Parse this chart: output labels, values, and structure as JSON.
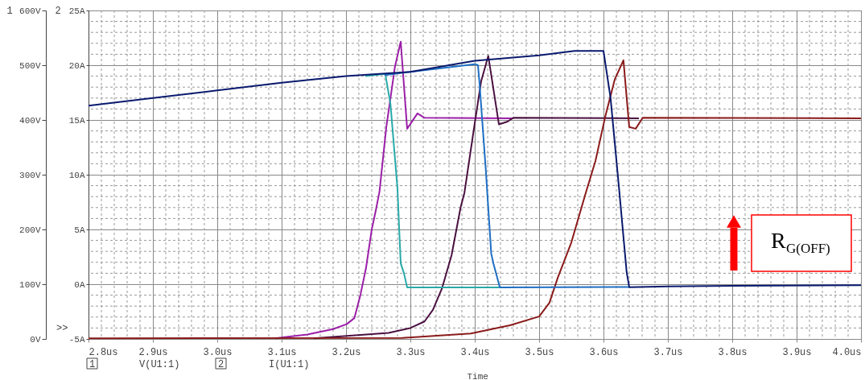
{
  "chart_data": {
    "type": "line",
    "xlabel": "Time",
    "xlim": [
      2.8,
      4.0
    ],
    "xticks": [
      {
        "value": 2.8,
        "label": "2.8us"
      },
      {
        "value": 2.9,
        "label": "2.9us"
      },
      {
        "value": 3.0,
        "label": "3.0us"
      },
      {
        "value": 3.1,
        "label": "3.1us"
      },
      {
        "value": 3.2,
        "label": "3.2us"
      },
      {
        "value": 3.3,
        "label": "3.3us"
      },
      {
        "value": 3.4,
        "label": "3.4us"
      },
      {
        "value": 3.5,
        "label": "3.5us"
      },
      {
        "value": 3.6,
        "label": "3.6us"
      },
      {
        "value": 3.7,
        "label": "3.7us"
      },
      {
        "value": 3.8,
        "label": "3.8us"
      },
      {
        "value": 3.9,
        "label": "3.9us"
      },
      {
        "value": 4.0,
        "label": "4.0us"
      }
    ],
    "ylim": [
      0,
      600
    ],
    "yticks": [
      {
        "value": 0,
        "label": "0V"
      },
      {
        "value": 100,
        "label": "100V"
      },
      {
        "value": 200,
        "label": "200V"
      },
      {
        "value": 300,
        "label": "300V"
      },
      {
        "value": 400,
        "label": "400V"
      },
      {
        "value": 500,
        "label": "500V"
      },
      {
        "value": 600,
        "label": "600V"
      }
    ],
    "y2lim": [
      -5,
      25
    ],
    "y2ticks": [
      {
        "value": -5,
        "label": "-5A"
      },
      {
        "value": 0,
        "label": "0A"
      },
      {
        "value": 5,
        "label": "5A"
      },
      {
        "value": 10,
        "label": "10A"
      },
      {
        "value": 15,
        "label": "15A"
      },
      {
        "value": 20,
        "label": "20A"
      },
      {
        "value": 25,
        "label": "25A"
      }
    ],
    "grid": true,
    "line_style": "solid",
    "series": [
      {
        "color": "#9b1fa8",
        "x": [
          3.09,
          3.102,
          3.14,
          3.18,
          3.201,
          3.213,
          3.2225,
          3.231,
          3.24,
          3.246,
          3.252,
          3.2625,
          3.276,
          3.285,
          3.295,
          3.311,
          3.322,
          3.46
        ],
        "values": [
          1,
          3,
          8,
          18,
          27,
          38,
          81,
          129,
          200,
          233,
          269,
          386,
          497,
          543,
          384,
          412,
          404,
          403
        ]
      },
      {
        "color": "#4a1040",
        "x": [
          3.15,
          3.158,
          3.266,
          3.3,
          3.322,
          3.335,
          3.349,
          3.364,
          3.378,
          3.384,
          3.4,
          3.41,
          3.421,
          3.425,
          3.4375,
          3.451,
          3.46,
          3.655
        ],
        "values": [
          1,
          2,
          11,
          20,
          32,
          53,
          92,
          153,
          240,
          267,
          394,
          471,
          517,
          487,
          392,
          397,
          404,
          403
        ]
      },
      {
        "color": "#8b1a1a",
        "x": [
          2.8,
          3.2875,
          3.394,
          3.455,
          3.5,
          3.516,
          3.529,
          3.55,
          3.5725,
          3.5875,
          3.6025,
          3.6175,
          3.631,
          3.64,
          3.65,
          3.661,
          4.0
        ],
        "values": [
          1,
          2,
          10,
          25,
          41,
          66,
          112,
          176,
          267,
          325,
          405,
          474,
          509,
          387,
          384,
          404,
          403
        ]
      },
      {
        "color": "#2aa9a9",
        "axis": "y2",
        "x": [
          3.23,
          3.261,
          3.269,
          3.28,
          3.2825,
          3.285,
          3.29,
          3.295,
          3.44
        ],
        "values": [
          19.0,
          19.2,
          16.5,
          8.7,
          5.2,
          1.9,
          1.0,
          -0.3,
          -0.3
        ]
      },
      {
        "color": "#1f6fc4",
        "axis": "y2",
        "x": [
          3.26,
          3.3,
          3.4,
          3.405,
          3.4075,
          3.417,
          3.4256,
          3.429,
          3.439,
          3.64
        ],
        "values": [
          19.1,
          19.4,
          20.1,
          20.0,
          18.3,
          10.6,
          2.8,
          1.9,
          -0.3,
          -0.25
        ]
      },
      {
        "color": "#0a1a6e",
        "axis": "y2",
        "x": [
          2.8,
          2.9,
          3.0,
          3.1,
          3.2,
          3.3,
          3.4,
          3.5,
          3.555,
          3.6,
          3.611,
          3.624,
          3.636,
          3.64,
          3.7,
          3.8,
          4.0
        ],
        "values": [
          16.3,
          17.0,
          17.7,
          18.4,
          19.0,
          19.4,
          20.4,
          20.9,
          21.3,
          21.3,
          17.0,
          8.85,
          1.1,
          -0.27,
          -0.2,
          -0.15,
          -0.1
        ]
      }
    ],
    "annotations": [
      "1",
      "2",
      "1",
      "V(U1:1)",
      "2",
      "I(U1:1)",
      ">>",
      "R$_{G(OFF)}$"
    ]
  }
}
